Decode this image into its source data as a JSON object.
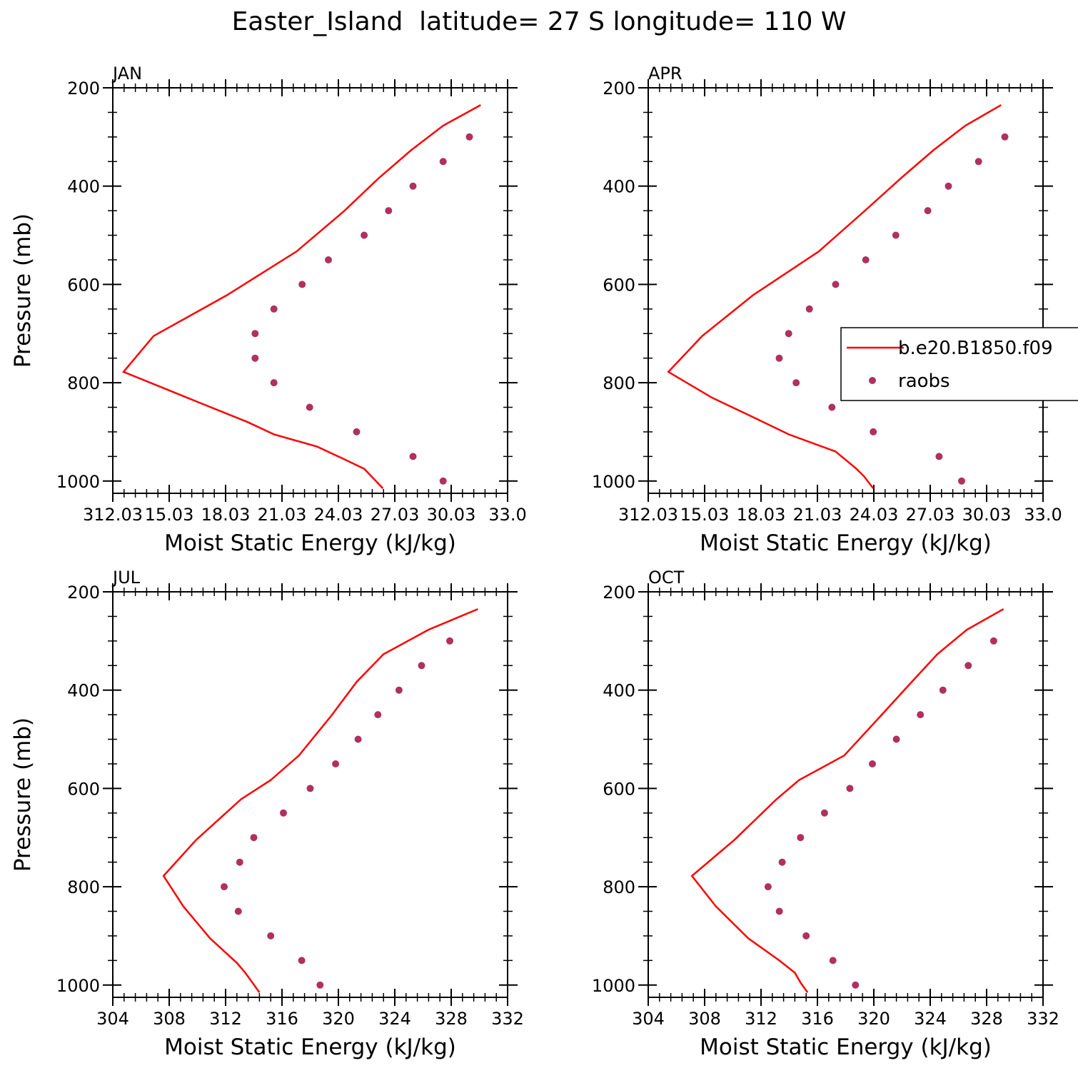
{
  "title": "Easter_Island  latitude= 27 S longitude= 110 W",
  "colors": {
    "model": "#ff0000",
    "obs": "#b03060",
    "axis": "#000000"
  },
  "legend": {
    "placement": "inside APR panel, right",
    "model_label": "b.e20.B1850.f09",
    "obs_label": "raobs"
  },
  "chart_data": [
    {
      "type": "line",
      "panel": "JAN",
      "xlabel": "Moist Static Energy (kJ/kg)",
      "ylabel": "Pressure (mb)",
      "xlim": [
        312.03,
        333.03
      ],
      "ylim": [
        200,
        1025
      ],
      "y_inverted": true,
      "xticks": [
        312.03,
        315.03,
        318.03,
        321.03,
        324.03,
        327.03,
        330.03,
        333.03
      ],
      "xtick_labels": [
        "312.03",
        "15.03",
        "18.03",
        "21.03",
        "24.03",
        "27.03",
        "30.03",
        "33.0"
      ],
      "yticks": [
        200,
        400,
        600,
        800,
        1000
      ],
      "series": [
        {
          "name": "b.e20.B1850.f09",
          "kind": "line",
          "x": [
            331.6,
            329.6,
            327.9,
            326.2,
            324.3,
            321.8,
            318.1,
            314.2,
            312.6,
            316.6,
            319.2,
            320.6,
            322.9,
            324.3,
            325.4,
            326.4
          ],
          "y": [
            235,
            277,
            327,
            383,
            452,
            533,
            622,
            705,
            778,
            840,
            880,
            905,
            930,
            955,
            975,
            1015
          ]
        },
        {
          "name": "raobs",
          "kind": "scatter",
          "x": [
            331.0,
            329.6,
            328.0,
            326.7,
            325.4,
            323.5,
            322.1,
            320.6,
            319.6,
            319.6,
            320.6,
            322.5,
            325.0,
            328.0,
            329.6
          ],
          "y": [
            300,
            350,
            400,
            450,
            500,
            550,
            600,
            650,
            700,
            750,
            800,
            850,
            900,
            950,
            1000
          ]
        }
      ]
    },
    {
      "type": "line",
      "panel": "APR",
      "xlabel": "Moist Static Energy (kJ/kg)",
      "ylabel": "",
      "xlim": [
        312.03,
        333.03
      ],
      "ylim": [
        200,
        1025
      ],
      "y_inverted": true,
      "xticks": [
        312.03,
        315.03,
        318.03,
        321.03,
        324.03,
        327.03,
        330.03,
        333.03
      ],
      "xtick_labels": [
        "312.03",
        "15.03",
        "18.03",
        "21.03",
        "24.03",
        "27.03",
        "30.03",
        "33.0"
      ],
      "yticks": [
        200,
        400,
        600,
        800,
        1000
      ],
      "series": [
        {
          "name": "b.e20.B1850.f09",
          "kind": "line",
          "x": [
            330.8,
            328.9,
            327.2,
            325.5,
            323.5,
            321.1,
            317.6,
            314.9,
            313.1,
            315.4,
            317.6,
            319.5,
            322.0,
            323.1,
            323.5,
            324.0
          ],
          "y": [
            235,
            277,
            327,
            383,
            452,
            533,
            622,
            705,
            778,
            830,
            870,
            905,
            940,
            975,
            990,
            1015
          ]
        },
        {
          "name": "raobs",
          "kind": "scatter",
          "x": [
            331.0,
            329.6,
            328.0,
            326.9,
            325.2,
            323.6,
            322.0,
            320.6,
            319.5,
            319.0,
            319.9,
            321.8,
            324.0,
            327.5,
            328.7
          ],
          "y": [
            300,
            350,
            400,
            450,
            500,
            550,
            600,
            650,
            700,
            750,
            800,
            850,
            900,
            950,
            1000
          ]
        }
      ]
    },
    {
      "type": "line",
      "panel": "JUL",
      "xlabel": "Moist Static Energy (kJ/kg)",
      "ylabel": "Pressure (mb)",
      "xlim": [
        304,
        332
      ],
      "ylim": [
        200,
        1025
      ],
      "y_inverted": true,
      "xticks": [
        304,
        308,
        312,
        316,
        320,
        324,
        328,
        332
      ],
      "xtick_labels": [
        "304",
        "308",
        "312",
        "316",
        "320",
        "324",
        "328",
        "332"
      ],
      "yticks": [
        200,
        400,
        600,
        800,
        1000
      ],
      "series": [
        {
          "name": "b.e20.B1850.f09",
          "kind": "line",
          "x": [
            329.9,
            326.4,
            323.2,
            321.3,
            319.5,
            317.2,
            315.2,
            313.1,
            309.9,
            307.6,
            309.0,
            310.9,
            312.8,
            313.4,
            313.9,
            314.4
          ],
          "y": [
            235,
            277,
            327,
            383,
            452,
            533,
            583,
            622,
            705,
            778,
            840,
            905,
            955,
            975,
            995,
            1015
          ]
        },
        {
          "name": "raobs",
          "kind": "scatter",
          "x": [
            327.9,
            325.9,
            324.3,
            322.8,
            321.4,
            319.8,
            318.0,
            316.1,
            314.0,
            313.0,
            311.9,
            312.9,
            315.2,
            317.4,
            318.7
          ],
          "y": [
            300,
            350,
            400,
            450,
            500,
            550,
            600,
            650,
            700,
            750,
            800,
            850,
            900,
            950,
            1000
          ]
        }
      ]
    },
    {
      "type": "line",
      "panel": "OCT",
      "xlabel": "Moist Static Energy (kJ/kg)",
      "ylabel": "",
      "xlim": [
        304,
        332
      ],
      "ylim": [
        200,
        1025
      ],
      "y_inverted": true,
      "xticks": [
        304,
        308,
        312,
        316,
        320,
        324,
        328,
        332
      ],
      "xtick_labels": [
        "304",
        "308",
        "312",
        "316",
        "320",
        "324",
        "328",
        "332"
      ],
      "yticks": [
        200,
        400,
        600,
        800,
        1000
      ],
      "series": [
        {
          "name": "b.e20.B1850.f09",
          "kind": "line",
          "x": [
            329.2,
            326.6,
            324.5,
            322.7,
            320.5,
            317.9,
            314.7,
            313.1,
            310.1,
            307.1,
            308.8,
            311.1,
            313.3,
            314.4,
            314.8,
            315.3
          ],
          "y": [
            235,
            277,
            327,
            383,
            452,
            533,
            583,
            622,
            705,
            778,
            840,
            905,
            950,
            975,
            995,
            1015
          ]
        },
        {
          "name": "raobs",
          "kind": "scatter",
          "x": [
            328.5,
            326.7,
            324.9,
            323.3,
            321.6,
            319.9,
            318.3,
            316.5,
            314.8,
            313.5,
            312.5,
            313.3,
            315.2,
            317.1,
            318.7
          ],
          "y": [
            300,
            350,
            400,
            450,
            500,
            550,
            600,
            650,
            700,
            750,
            800,
            850,
            900,
            950,
            1000
          ]
        }
      ]
    }
  ]
}
